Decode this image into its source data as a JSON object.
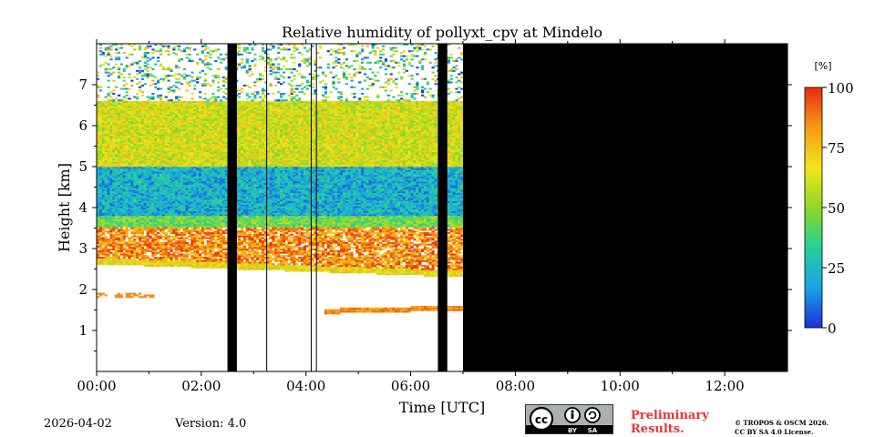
{
  "chart_data": {
    "type": "heatmap",
    "title": "Relative humidity of pollyxt_cpv at Mindelo",
    "xlabel": "Time [UTC]",
    "ylabel": "Height [km]",
    "xlim": [
      0,
      13.2
    ],
    "ylim": [
      0,
      8
    ],
    "x_ticks": [
      0,
      2,
      4,
      6,
      8,
      10,
      12
    ],
    "x_tick_labels": [
      "00:00",
      "02:00",
      "04:00",
      "06:00",
      "08:00",
      "10:00",
      "12:00"
    ],
    "y_ticks": [
      1,
      2,
      3,
      4,
      5,
      6,
      7
    ],
    "y_tick_labels": [
      "1",
      "2",
      "3",
      "4",
      "5",
      "6",
      "7"
    ],
    "data_end_hour": 7.0,
    "no_data_fill": "#000000",
    "data_gaps_hours": [
      [
        2.5,
        2.68
      ],
      [
        6.52,
        6.7
      ]
    ],
    "thin_gap_lines_hours": [
      3.25,
      4.1,
      4.2
    ],
    "layers": [
      {
        "name": "moist-layer-top",
        "bottom_km": 5.0,
        "top_km": 6.6,
        "rh_mean": 62
      },
      {
        "name": "moist-layer-blue",
        "bottom_km": 3.8,
        "top_km": 5.0,
        "rh_mean": 22
      },
      {
        "name": "transition",
        "bottom_km": 3.5,
        "top_km": 3.8,
        "rh_mean": 45
      },
      {
        "name": "humid-band",
        "bottom_km": 2.6,
        "top_km": 3.5,
        "rh_mean": 85
      },
      {
        "name": "noise-top",
        "bottom_km": 6.6,
        "top_km": 8.0,
        "rh_mean": 40
      }
    ],
    "low_layer": {
      "start_hour": 4.3,
      "end_hour": 7.0,
      "height_km": 1.45,
      "rh_mean": 85
    },
    "colorbar": {
      "unit": "[%]",
      "range": [
        0,
        100
      ],
      "ticks": [
        0,
        25,
        50,
        75,
        100
      ],
      "tick_labels": [
        "0",
        "25",
        "50",
        "75",
        "100"
      ],
      "colors": [
        "#1a2fd6",
        "#1aa3e6",
        "#23d19a",
        "#8ed825",
        "#f2e51a",
        "#f59a16",
        "#e62a10"
      ]
    }
  },
  "footer": {
    "date": "2026-04-02",
    "version": "Version: 4.0",
    "preliminary_line1": "Preliminary",
    "preliminary_line2": "Results.",
    "copyright_line1": "© TROPOS & OSCM 2026.",
    "copyright_line2": "CC BY SA 4.0 License.",
    "cc_label": "cc",
    "by_label": "BY",
    "sa_label": "SA"
  }
}
